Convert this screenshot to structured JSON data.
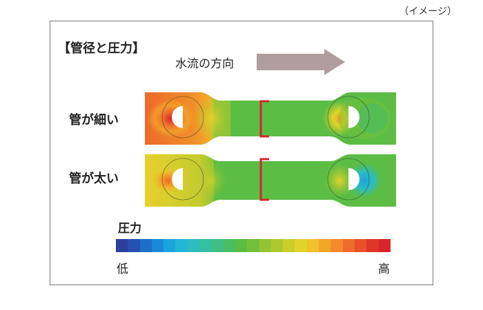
{
  "note": "（イメージ）",
  "heading": "【管径と圧力】",
  "flow": {
    "label": "水流の方向",
    "arrow_color": "#b19da0"
  },
  "rows": [
    {
      "label": "管が細い"
    },
    {
      "label": "管が太い"
    }
  ],
  "legend": {
    "title": "圧力",
    "low": "低",
    "high": "高",
    "colors": [
      "#2b3f9c",
      "#2650b0",
      "#1e6fc7",
      "#1a8ad8",
      "#1ba4de",
      "#23b7d6",
      "#2dbdc0",
      "#35bfa3",
      "#3fbf84",
      "#4bbd63",
      "#5cbd45",
      "#74c03a",
      "#91c534",
      "#adc92f",
      "#c8cf2b",
      "#e2d32a",
      "#f0c12a",
      "#f3a52a",
      "#f38a2b",
      "#ef6c2b",
      "#e84f2a",
      "#e0362a",
      "#d8252a"
    ]
  }
}
